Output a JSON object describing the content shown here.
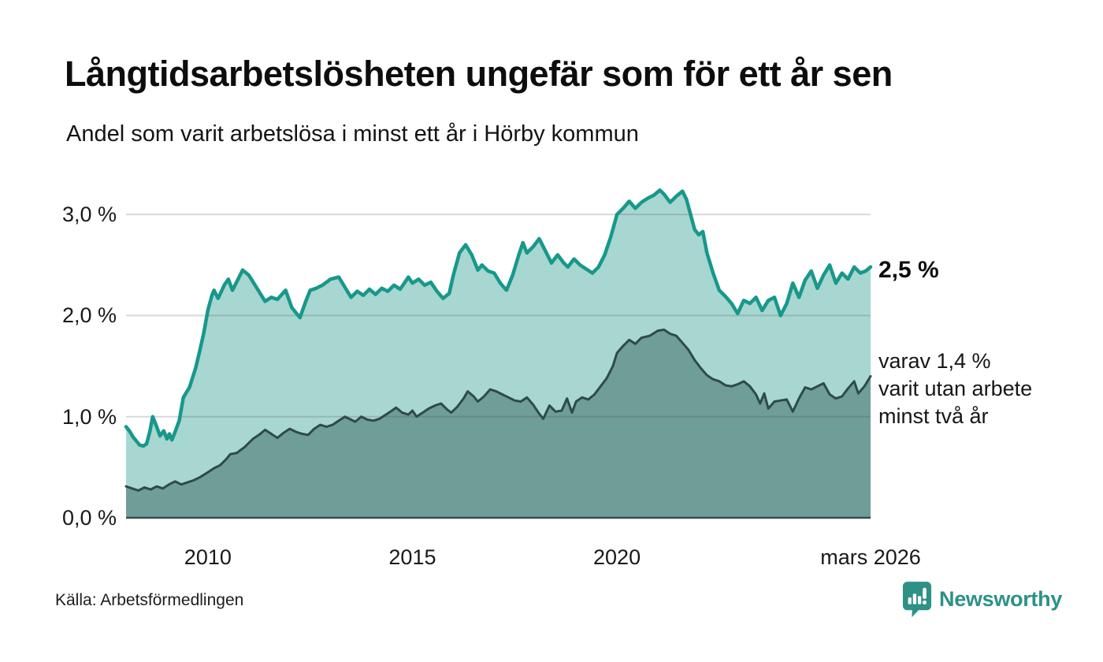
{
  "chart_data": {
    "type": "area",
    "title": "Långtidsarbetslösheten ungefär som för ett år sen",
    "subtitle": "Andel som varit arbetslösa i minst ett år i Hörby kommun",
    "x_domain": [
      2008,
      2026.2
    ],
    "y_domain": [
      0,
      3.3
    ],
    "grid": "horizontal",
    "legend_position": "none",
    "y_ticks": [
      {
        "value": 3,
        "label": "3,0 %"
      },
      {
        "value": 2,
        "label": "2,0 %"
      },
      {
        "value": 1,
        "label": "1,0 %"
      },
      {
        "value": 0,
        "label": "0,0 %"
      }
    ],
    "x_ticks": [
      {
        "value": 2010,
        "label": "2010"
      },
      {
        "value": 2015,
        "label": "2015"
      },
      {
        "value": 2020,
        "label": "2020"
      },
      {
        "value": 2026.2,
        "label": "mars 2026"
      }
    ],
    "series": [
      {
        "name": "Andel som varit arbetslösa minst ett år",
        "line_color": "#17988b",
        "fill_color": "#a7d7d0",
        "latest_value": 2.5,
        "points": [
          [
            2008.0,
            0.9
          ],
          [
            2008.08,
            0.86
          ],
          [
            2008.17,
            0.8
          ],
          [
            2008.25,
            0.76
          ],
          [
            2008.33,
            0.72
          ],
          [
            2008.42,
            0.71
          ],
          [
            2008.5,
            0.73
          ],
          [
            2008.58,
            0.85
          ],
          [
            2008.65,
            1.0
          ],
          [
            2008.75,
            0.9
          ],
          [
            2008.83,
            0.81
          ],
          [
            2008.92,
            0.86
          ],
          [
            2009.0,
            0.78
          ],
          [
            2009.06,
            0.83
          ],
          [
            2009.12,
            0.77
          ],
          [
            2009.2,
            0.85
          ],
          [
            2009.3,
            0.96
          ],
          [
            2009.4,
            1.19
          ],
          [
            2009.55,
            1.29
          ],
          [
            2009.7,
            1.48
          ],
          [
            2009.8,
            1.65
          ],
          [
            2009.9,
            1.83
          ],
          [
            2010.0,
            2.05
          ],
          [
            2010.1,
            2.2
          ],
          [
            2010.15,
            2.25
          ],
          [
            2010.25,
            2.17
          ],
          [
            2010.4,
            2.3
          ],
          [
            2010.5,
            2.36
          ],
          [
            2010.6,
            2.25
          ],
          [
            2010.7,
            2.33
          ],
          [
            2010.85,
            2.45
          ],
          [
            2011.0,
            2.4
          ],
          [
            2011.2,
            2.27
          ],
          [
            2011.4,
            2.14
          ],
          [
            2011.55,
            2.18
          ],
          [
            2011.7,
            2.16
          ],
          [
            2011.9,
            2.25
          ],
          [
            2012.05,
            2.08
          ],
          [
            2012.15,
            2.03
          ],
          [
            2012.25,
            1.98
          ],
          [
            2012.4,
            2.15
          ],
          [
            2012.5,
            2.25
          ],
          [
            2012.65,
            2.27
          ],
          [
            2012.8,
            2.3
          ],
          [
            2013.0,
            2.36
          ],
          [
            2013.2,
            2.38
          ],
          [
            2013.35,
            2.28
          ],
          [
            2013.5,
            2.18
          ],
          [
            2013.65,
            2.24
          ],
          [
            2013.8,
            2.2
          ],
          [
            2013.95,
            2.26
          ],
          [
            2014.1,
            2.21
          ],
          [
            2014.25,
            2.27
          ],
          [
            2014.4,
            2.24
          ],
          [
            2014.55,
            2.3
          ],
          [
            2014.7,
            2.26
          ],
          [
            2014.9,
            2.38
          ],
          [
            2015.0,
            2.32
          ],
          [
            2015.15,
            2.36
          ],
          [
            2015.3,
            2.3
          ],
          [
            2015.45,
            2.33
          ],
          [
            2015.6,
            2.24
          ],
          [
            2015.75,
            2.17
          ],
          [
            2015.9,
            2.22
          ],
          [
            2016.0,
            2.4
          ],
          [
            2016.15,
            2.62
          ],
          [
            2016.3,
            2.7
          ],
          [
            2016.45,
            2.6
          ],
          [
            2016.6,
            2.45
          ],
          [
            2016.7,
            2.5
          ],
          [
            2016.85,
            2.44
          ],
          [
            2017.0,
            2.42
          ],
          [
            2017.15,
            2.32
          ],
          [
            2017.3,
            2.25
          ],
          [
            2017.45,
            2.4
          ],
          [
            2017.6,
            2.6
          ],
          [
            2017.7,
            2.72
          ],
          [
            2017.8,
            2.62
          ],
          [
            2017.95,
            2.68
          ],
          [
            2018.1,
            2.76
          ],
          [
            2018.25,
            2.64
          ],
          [
            2018.4,
            2.52
          ],
          [
            2018.55,
            2.6
          ],
          [
            2018.7,
            2.52
          ],
          [
            2018.8,
            2.48
          ],
          [
            2018.95,
            2.56
          ],
          [
            2019.1,
            2.5
          ],
          [
            2019.25,
            2.46
          ],
          [
            2019.4,
            2.42
          ],
          [
            2019.55,
            2.48
          ],
          [
            2019.7,
            2.6
          ],
          [
            2019.85,
            2.78
          ],
          [
            2020.0,
            3.0
          ],
          [
            2020.15,
            3.06
          ],
          [
            2020.3,
            3.13
          ],
          [
            2020.45,
            3.06
          ],
          [
            2020.6,
            3.12
          ],
          [
            2020.75,
            3.16
          ],
          [
            2020.9,
            3.19
          ],
          [
            2021.05,
            3.24
          ],
          [
            2021.15,
            3.2
          ],
          [
            2021.3,
            3.12
          ],
          [
            2021.45,
            3.18
          ],
          [
            2021.6,
            3.23
          ],
          [
            2021.7,
            3.15
          ],
          [
            2021.8,
            3.0
          ],
          [
            2021.9,
            2.85
          ],
          [
            2022.0,
            2.8
          ],
          [
            2022.1,
            2.83
          ],
          [
            2022.2,
            2.62
          ],
          [
            2022.35,
            2.42
          ],
          [
            2022.5,
            2.25
          ],
          [
            2022.65,
            2.19
          ],
          [
            2022.8,
            2.12
          ],
          [
            2022.95,
            2.02
          ],
          [
            2023.1,
            2.15
          ],
          [
            2023.25,
            2.12
          ],
          [
            2023.4,
            2.18
          ],
          [
            2023.55,
            2.05
          ],
          [
            2023.7,
            2.15
          ],
          [
            2023.85,
            2.18
          ],
          [
            2024.0,
            2.0
          ],
          [
            2024.15,
            2.12
          ],
          [
            2024.3,
            2.32
          ],
          [
            2024.45,
            2.18
          ],
          [
            2024.6,
            2.35
          ],
          [
            2024.75,
            2.44
          ],
          [
            2024.9,
            2.27
          ],
          [
            2025.05,
            2.4
          ],
          [
            2025.2,
            2.5
          ],
          [
            2025.35,
            2.32
          ],
          [
            2025.5,
            2.42
          ],
          [
            2025.65,
            2.36
          ],
          [
            2025.8,
            2.48
          ],
          [
            2025.95,
            2.42
          ],
          [
            2026.08,
            2.44
          ],
          [
            2026.2,
            2.48
          ]
        ]
      },
      {
        "name": "varav varit utan arbete minst två år",
        "line_color": "#2e4b47",
        "fill_color": "#6f9d98",
        "latest_value": 1.4,
        "points": [
          [
            2008.0,
            0.31
          ],
          [
            2008.15,
            0.29
          ],
          [
            2008.3,
            0.27
          ],
          [
            2008.45,
            0.3
          ],
          [
            2008.6,
            0.28
          ],
          [
            2008.75,
            0.31
          ],
          [
            2008.9,
            0.29
          ],
          [
            2009.05,
            0.33
          ],
          [
            2009.2,
            0.36
          ],
          [
            2009.35,
            0.33
          ],
          [
            2009.5,
            0.35
          ],
          [
            2009.65,
            0.37
          ],
          [
            2009.8,
            0.4
          ],
          [
            2010.0,
            0.45
          ],
          [
            2010.15,
            0.49
          ],
          [
            2010.3,
            0.52
          ],
          [
            2010.45,
            0.58
          ],
          [
            2010.55,
            0.63
          ],
          [
            2010.7,
            0.64
          ],
          [
            2010.9,
            0.7
          ],
          [
            2011.1,
            0.78
          ],
          [
            2011.25,
            0.82
          ],
          [
            2011.4,
            0.87
          ],
          [
            2011.55,
            0.83
          ],
          [
            2011.7,
            0.79
          ],
          [
            2011.85,
            0.84
          ],
          [
            2012.0,
            0.88
          ],
          [
            2012.15,
            0.85
          ],
          [
            2012.3,
            0.83
          ],
          [
            2012.45,
            0.82
          ],
          [
            2012.6,
            0.88
          ],
          [
            2012.75,
            0.92
          ],
          [
            2012.9,
            0.9
          ],
          [
            2013.05,
            0.92
          ],
          [
            2013.2,
            0.96
          ],
          [
            2013.35,
            1.0
          ],
          [
            2013.5,
            0.97
          ],
          [
            2013.6,
            0.95
          ],
          [
            2013.75,
            1.0
          ],
          [
            2013.9,
            0.97
          ],
          [
            2014.05,
            0.96
          ],
          [
            2014.2,
            0.98
          ],
          [
            2014.35,
            1.02
          ],
          [
            2014.5,
            1.06
          ],
          [
            2014.6,
            1.09
          ],
          [
            2014.75,
            1.04
          ],
          [
            2014.9,
            1.02
          ],
          [
            2015.0,
            1.06
          ],
          [
            2015.1,
            1.0
          ],
          [
            2015.25,
            1.04
          ],
          [
            2015.4,
            1.08
          ],
          [
            2015.55,
            1.11
          ],
          [
            2015.7,
            1.13
          ],
          [
            2015.85,
            1.07
          ],
          [
            2015.95,
            1.04
          ],
          [
            2016.1,
            1.1
          ],
          [
            2016.25,
            1.18
          ],
          [
            2016.35,
            1.25
          ],
          [
            2016.5,
            1.2
          ],
          [
            2016.6,
            1.15
          ],
          [
            2016.75,
            1.2
          ],
          [
            2016.9,
            1.27
          ],
          [
            2017.05,
            1.25
          ],
          [
            2017.2,
            1.22
          ],
          [
            2017.35,
            1.19
          ],
          [
            2017.5,
            1.16
          ],
          [
            2017.65,
            1.15
          ],
          [
            2017.8,
            1.19
          ],
          [
            2017.95,
            1.12
          ],
          [
            2018.1,
            1.03
          ],
          [
            2018.2,
            0.98
          ],
          [
            2018.35,
            1.11
          ],
          [
            2018.5,
            1.05
          ],
          [
            2018.65,
            1.06
          ],
          [
            2018.78,
            1.18
          ],
          [
            2018.9,
            1.04
          ],
          [
            2019.0,
            1.15
          ],
          [
            2019.15,
            1.19
          ],
          [
            2019.3,
            1.17
          ],
          [
            2019.45,
            1.22
          ],
          [
            2019.6,
            1.3
          ],
          [
            2019.75,
            1.38
          ],
          [
            2019.9,
            1.5
          ],
          [
            2020.0,
            1.63
          ],
          [
            2020.15,
            1.7
          ],
          [
            2020.3,
            1.76
          ],
          [
            2020.45,
            1.72
          ],
          [
            2020.6,
            1.78
          ],
          [
            2020.8,
            1.8
          ],
          [
            2021.0,
            1.85
          ],
          [
            2021.15,
            1.86
          ],
          [
            2021.3,
            1.82
          ],
          [
            2021.45,
            1.8
          ],
          [
            2021.6,
            1.73
          ],
          [
            2021.75,
            1.66
          ],
          [
            2021.9,
            1.56
          ],
          [
            2022.05,
            1.48
          ],
          [
            2022.2,
            1.41
          ],
          [
            2022.35,
            1.37
          ],
          [
            2022.5,
            1.35
          ],
          [
            2022.65,
            1.31
          ],
          [
            2022.8,
            1.3
          ],
          [
            2022.95,
            1.32
          ],
          [
            2023.1,
            1.35
          ],
          [
            2023.25,
            1.3
          ],
          [
            2023.4,
            1.22
          ],
          [
            2023.5,
            1.13
          ],
          [
            2023.6,
            1.23
          ],
          [
            2023.7,
            1.08
          ],
          [
            2023.85,
            1.15
          ],
          [
            2024.0,
            1.16
          ],
          [
            2024.15,
            1.17
          ],
          [
            2024.3,
            1.05
          ],
          [
            2024.45,
            1.18
          ],
          [
            2024.6,
            1.29
          ],
          [
            2024.75,
            1.27
          ],
          [
            2024.9,
            1.3
          ],
          [
            2025.05,
            1.33
          ],
          [
            2025.2,
            1.22
          ],
          [
            2025.35,
            1.18
          ],
          [
            2025.5,
            1.2
          ],
          [
            2025.65,
            1.28
          ],
          [
            2025.8,
            1.35
          ],
          [
            2025.9,
            1.23
          ],
          [
            2026.05,
            1.3
          ],
          [
            2026.2,
            1.4
          ]
        ]
      }
    ],
    "annotations": {
      "latest_value": "2,5 %",
      "secondary_lines": [
        "varav 1,4 %",
        "varit utan arbete",
        "minst två år"
      ]
    }
  },
  "footer": {
    "source": "Källa: Arbetsförmedlingen",
    "brand": "Newsworthy"
  },
  "colors": {
    "accent_teal": "#17988b",
    "dark_series": "#2e4b47",
    "light_fill": "#a7d7d0",
    "dark_fill": "#6f9d98",
    "brand_teal": "#2d9186",
    "baseline": "#3a4c49"
  }
}
